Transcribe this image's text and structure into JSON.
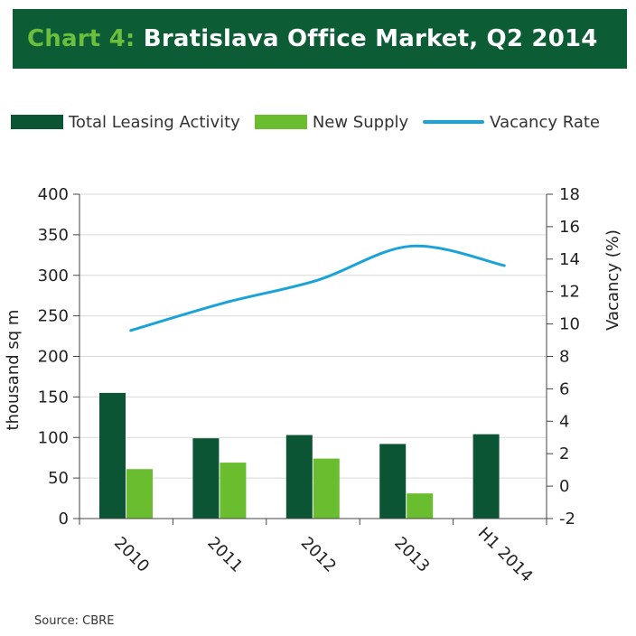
{
  "header": {
    "prefix": "Chart 4:",
    "title": "Bratislava Office Market, Q2 2014"
  },
  "source": "Source: CBRE",
  "colors": {
    "header_bg": "#0c5c36",
    "prefix": "#6cbf3c",
    "leasing": "#0b5434",
    "supply": "#6abd2e",
    "vacancy": "#1aa3d9",
    "grid": "#d9d9d9"
  },
  "chart_data": {
    "type": "bar",
    "categories": [
      "2010",
      "2011",
      "2012",
      "2013",
      "H1 2014"
    ],
    "series": [
      {
        "name": "Total Leasing Activity",
        "type": "bar",
        "axis": "left",
        "values": [
          155,
          99,
          103,
          92,
          104
        ]
      },
      {
        "name": "New Supply",
        "type": "bar",
        "axis": "left",
        "values": [
          61,
          69,
          74,
          31,
          null
        ]
      },
      {
        "name": "Vacancy Rate",
        "type": "line",
        "axis": "right",
        "values": [
          9.6,
          11.3,
          12.7,
          14.8,
          13.6
        ]
      }
    ],
    "ylabel": "thousand sq m",
    "y2label": "Vacancy (%)",
    "ylim": [
      0,
      400
    ],
    "y2lim": [
      -2,
      18
    ],
    "yticks": [
      "0",
      "50",
      "100",
      "150",
      "200",
      "250",
      "300",
      "350",
      "400"
    ],
    "y2ticks": [
      "-2",
      "0",
      "2",
      "4",
      "6",
      "8",
      "10",
      "12",
      "14",
      "16",
      "18"
    ],
    "grid": true,
    "legend": "top"
  }
}
